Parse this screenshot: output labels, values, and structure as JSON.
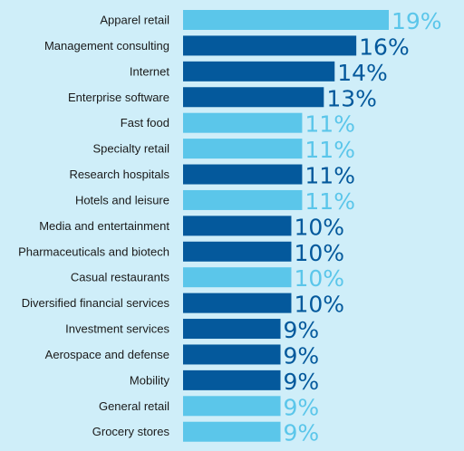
{
  "chart_data": {
    "type": "bar",
    "orientation": "horizontal",
    "categories": [
      "Apparel retail",
      "Management consulting",
      "Internet",
      "Enterprise software",
      "Fast food",
      "Specialty retail",
      "Research hospitals",
      "Hotels and leisure",
      "Media and entertainment",
      "Pharmaceuticals and biotech",
      "Casual restaurants",
      "Diversified financial services",
      "Investment services",
      "Aerospace and defense",
      "Mobility",
      "General retail",
      "Grocery stores"
    ],
    "values": [
      19,
      16,
      14,
      13,
      11,
      11,
      11,
      11,
      10,
      10,
      10,
      10,
      9,
      9,
      9,
      9,
      9
    ],
    "value_labels": [
      "19%",
      "16%",
      "14%",
      "13%",
      "11%",
      "11%",
      "11%",
      "11%",
      "10%",
      "10%",
      "10%",
      "10%",
      "9%",
      "9%",
      "9%",
      "9%",
      "9%"
    ],
    "bar_colors": [
      "light",
      "dark",
      "dark",
      "dark",
      "light",
      "light",
      "dark",
      "light",
      "dark",
      "dark",
      "light",
      "dark",
      "dark",
      "dark",
      "dark",
      "light",
      "light"
    ],
    "colors": {
      "light": "#5bc6ea",
      "dark": "#04599c",
      "background": "#cfeef9"
    },
    "title": "",
    "xlabel": "",
    "ylabel": "",
    "xlim": [
      0,
      19
    ],
    "grid": false,
    "legend": "none"
  }
}
